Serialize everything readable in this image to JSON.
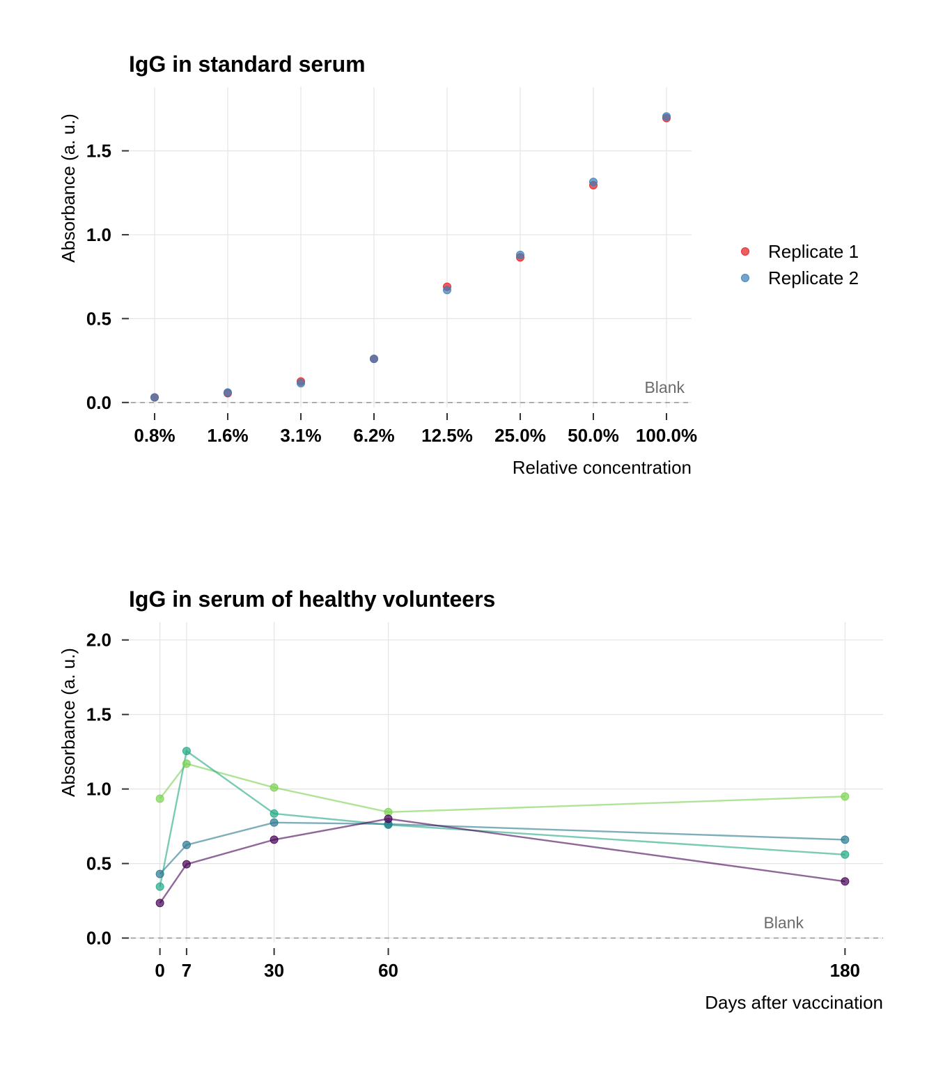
{
  "chart_data": [
    {
      "type": "scatter",
      "title": "IgG in standard serum",
      "xlabel": "Relative concentration",
      "ylabel": "Absorbance (a. u.)",
      "categories": [
        "0.8%",
        "1.6%",
        "3.1%",
        "6.2%",
        "12.5%",
        "25.0%",
        "50.0%",
        "100.0%"
      ],
      "y_ticks": [
        "0.0",
        "0.5",
        "1.0",
        "1.5"
      ],
      "ylim": [
        -0.03,
        1.88
      ],
      "grid": true,
      "legend_position": "right",
      "series": [
        {
          "name": "Replicate 1",
          "color": "#e41a1c",
          "values": [
            0.03,
            0.055,
            0.125,
            0.26,
            0.69,
            0.865,
            1.295,
            1.695
          ]
        },
        {
          "name": "Replicate 2",
          "color": "#377eb8",
          "values": [
            0.03,
            0.06,
            0.115,
            0.26,
            0.67,
            0.88,
            1.315,
            1.705
          ]
        }
      ],
      "reference_line": {
        "label": "Blank",
        "value": 0.0
      }
    },
    {
      "type": "line",
      "title": "IgG in serum of healthy volunteers",
      "xlabel": "Days after vaccination",
      "ylabel": "Absorbance (a. u.)",
      "x": [
        0,
        7,
        30,
        60,
        180
      ],
      "x_ticks": [
        "0",
        "7",
        "30",
        "60",
        "180"
      ],
      "y_ticks": [
        "0.0",
        "0.5",
        "1.0",
        "1.5",
        "2.0"
      ],
      "xlim": [
        -10,
        190
      ],
      "ylim": [
        -0.03,
        2.12
      ],
      "grid": true,
      "series": [
        {
          "color": "#7ad151",
          "values": [
            0.935,
            1.17,
            1.01,
            0.845,
            0.95
          ]
        },
        {
          "color": "#22a884",
          "values": [
            0.345,
            1.255,
            0.835,
            0.76,
            0.56
          ]
        },
        {
          "color": "#2a788e",
          "values": [
            0.43,
            0.625,
            0.775,
            0.765,
            0.66
          ]
        },
        {
          "color": "#440154",
          "values": [
            0.235,
            0.495,
            0.66,
            0.8,
            0.38
          ]
        }
      ],
      "reference_line": {
        "label": "Blank",
        "value": 0.0
      }
    }
  ]
}
